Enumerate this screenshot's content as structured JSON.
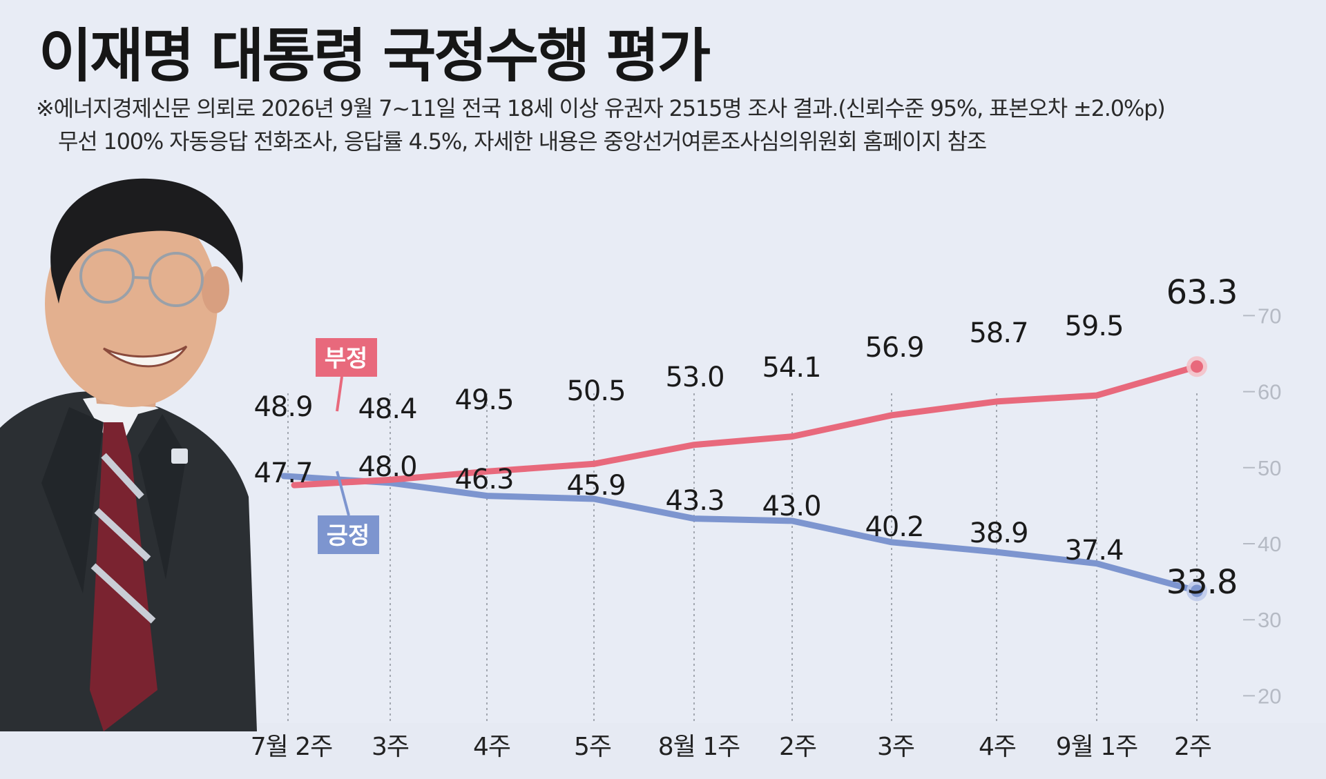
{
  "title": "이재명 대통령 국정수행 평가",
  "notes": [
    "※에너지경제신문 의뢰로 2026년 9월 7~11일 전국 18세 이상 유권자 2515명 조사 결과.(신뢰수준 95%, 표본오차 ±2.0%p)",
    "무선 100% 자동응답 전화조사, 응답률 4.5%, 자세한 내용은 중앙선거여론조사심의위원회 홈페이지 참조"
  ],
  "colors": {
    "negative": "#e8697c",
    "positive": "#7d95cf",
    "background": "#e8ecf5"
  },
  "chart_data": {
    "type": "line",
    "categories": [
      "7월 2주",
      "3주",
      "4주",
      "5주",
      "8월 1주",
      "2주",
      "3주",
      "4주",
      "9월 1주",
      "2주"
    ],
    "series": [
      {
        "name": "부정",
        "values": [
          47.7,
          48.4,
          49.5,
          50.5,
          53.0,
          54.1,
          56.9,
          58.7,
          59.5,
          63.3
        ]
      },
      {
        "name": "긍정",
        "values": [
          48.9,
          48.0,
          46.3,
          45.9,
          43.3,
          43.0,
          40.2,
          38.9,
          37.4,
          33.8
        ]
      }
    ],
    "ylim": [
      20,
      70
    ],
    "yticks": [
      "70",
      "60",
      "50",
      "40",
      "30",
      "20"
    ],
    "grid": "vertical dotted lines at each category",
    "legend": "inline labels on lines"
  }
}
